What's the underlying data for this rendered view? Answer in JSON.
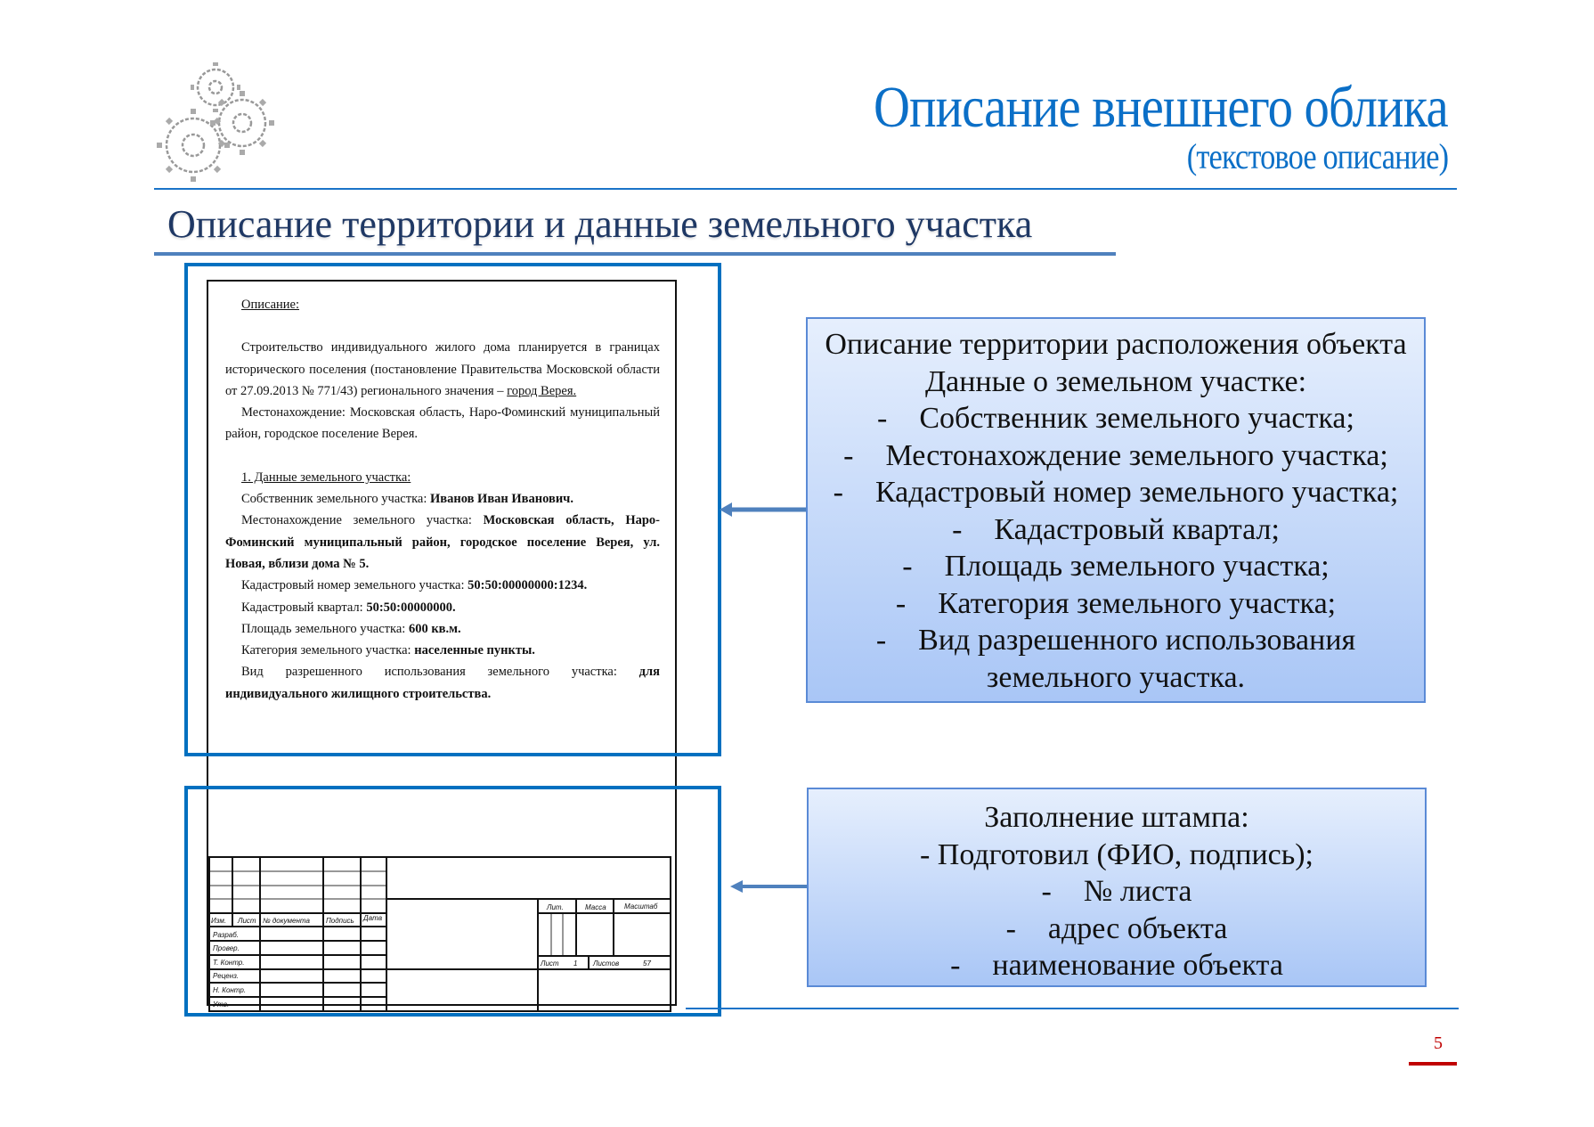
{
  "header": {
    "title": "Описание внешнего облика",
    "subtitle": "(текстовое описание)",
    "logo_icon": "gears-icon"
  },
  "section_title": "Описание территории и данные земельного участка",
  "document": {
    "heading": "Описание:",
    "intro": {
      "text": "Строительство индивидуального жилого дома планируется в границах исторического поселения (постановление Правительства Московской области от 27.09.2013 № 771/43) регионального значения – ",
      "link": "город Верея."
    },
    "location": "Местонахождение: Московская область, Наро-Фоминский муниципальный район, городское поселение Верея.",
    "section1_heading": "1. Данные земельного участка:",
    "fields": [
      {
        "label": "Собственник земельного участка: ",
        "value": "Иванов Иван Иванович."
      },
      {
        "label": "Местонахождение земельного участка: ",
        "value": "Московская область, Наро-Фоминский муниципальный район, городское поселение Верея, ул. Новая, вблизи дома № 5."
      },
      {
        "label": "Кадастровый номер земельного участка: ",
        "value": "50:50:00000000:1234."
      },
      {
        "label": "Кадастровый квартал: ",
        "value": "50:50:00000000."
      },
      {
        "label": "Площадь земельного участка: ",
        "value": "600 кв.м."
      },
      {
        "label": "Категория земельного участка: ",
        "value": "населенные пункты."
      },
      {
        "label": "Вид разрешенного использования земельного участка: ",
        "value": "для индивидуального жилищного строительства."
      }
    ]
  },
  "stamp": {
    "columns": [
      "Изм.",
      "Лист",
      "№ документа",
      "Подпись",
      "Дата"
    ],
    "rows": [
      "Разраб.",
      "Провер.",
      "Т. Контр.",
      "Реценз.",
      "Н. Контр.",
      "Утв."
    ],
    "lit": "Лит.",
    "mass": "Масса",
    "scale": "Масштаб",
    "sheet_label": "Лист",
    "sheet_value": "1",
    "sheets_label": "Листов",
    "sheets_value": "57"
  },
  "callout1": {
    "lines": [
      "Описание территории расположения объекта",
      "Данные о земельном участке:"
    ],
    "bullet": "-",
    "items": [
      "Собственник земельного участка;",
      "Местонахождение земельного участка;",
      "Кадастровый номер земельного участка;",
      "Кадастровый квартал;",
      "Площадь земельного участка;",
      "Категория земельного участка;",
      "Вид разрешенного использования"
    ],
    "continuation": "земельного участка."
  },
  "callout2": {
    "title": "Заполнение штампа:",
    "first": "- Подготовил (ФИО, подпись);",
    "bullet": "-",
    "items": [
      "№ листа",
      "адрес объекта",
      "наименование объекта"
    ]
  },
  "colors": {
    "accent": "#0b6fc7",
    "highlight": "#0070c0",
    "section": "#1f3864",
    "page_number": "#c00000"
  },
  "page_number": "5"
}
